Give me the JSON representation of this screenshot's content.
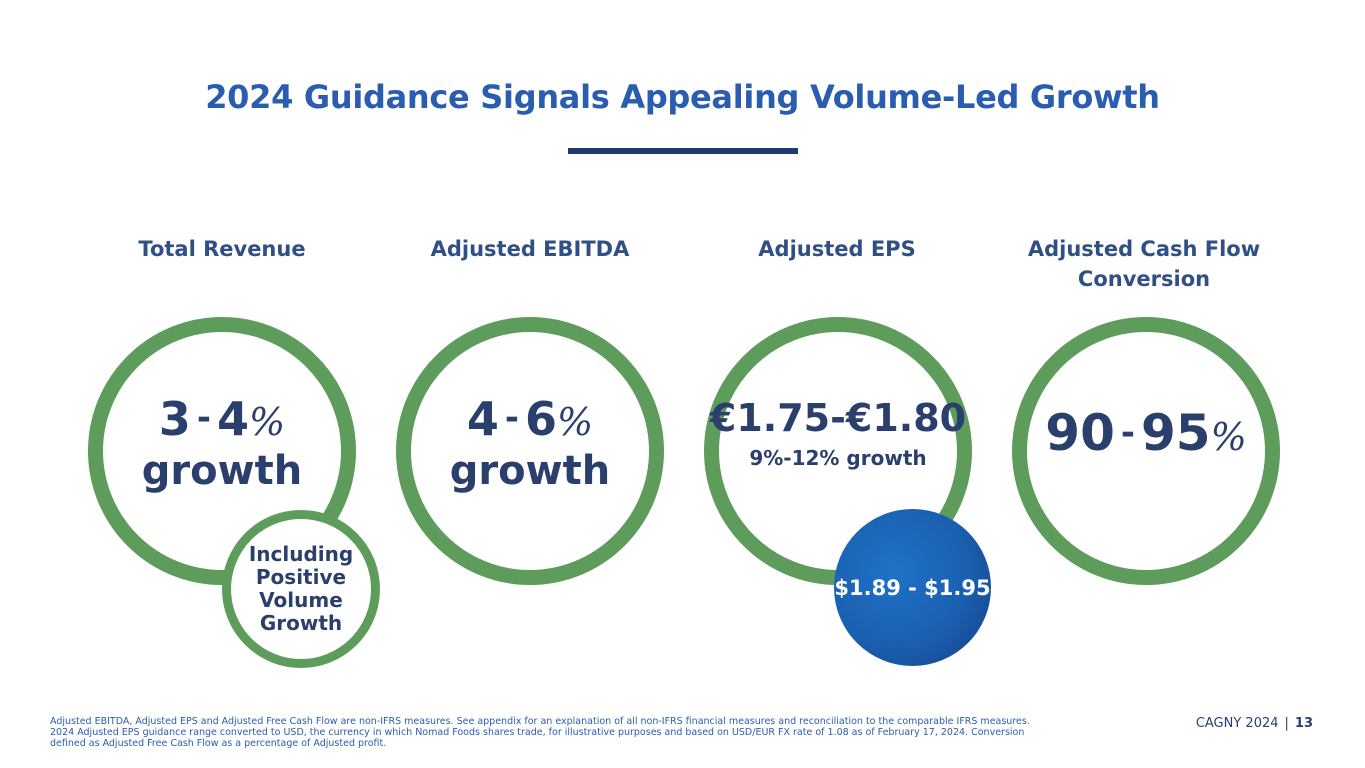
{
  "title": "2024 Guidance Signals Appealing Volume-Led Growth",
  "metrics": [
    {
      "label": "Total Revenue",
      "low": "3",
      "high": "4",
      "dash": "-",
      "pct": "%",
      "sub": "growth"
    },
    {
      "label": "Adjusted EBITDA",
      "low": "4",
      "high": "6",
      "dash": "-",
      "pct": "%",
      "sub": "growth"
    },
    {
      "label": "Adjusted EPS",
      "range": "€1.75-€1.80",
      "sub": "9%-12% growth"
    },
    {
      "label_line1": "Adjusted Cash Flow",
      "label_line2": "Conversion",
      "low": "90",
      "high": "95",
      "dash": "-",
      "pct": "%"
    }
  ],
  "badges": {
    "revenue_lines": [
      "Including",
      "Positive",
      "Volume",
      "Growth"
    ],
    "eps_usd": "$1.89 - $1.95"
  },
  "footnote": {
    "line1": "Adjusted EBITDA, Adjusted EPS and Adjusted Free Cash Flow are non-IFRS measures. See appendix for an explanation of all non-IFRS financial measures and reconciliation to the comparable IFRS measures.",
    "line2": "2024 Adjusted EPS guidance range converted to USD, the currency in which Nomad Foods shares trade, for illustrative purposes and based on USD/EUR FX rate of 1.08 as of February 17, 2024. Conversion",
    "line3": "defined as Adjusted Free Cash Flow as a percentage of Adjusted profit."
  },
  "footer": {
    "event": "CAGNY 2024",
    "separator": "|",
    "page": "13"
  },
  "colors": {
    "title": "#2a5db0",
    "ring": "#5e9c5c",
    "value_text": "#2a3f6c",
    "badge_blue": "#1a5fb0"
  }
}
